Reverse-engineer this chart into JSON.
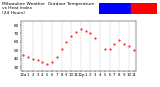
{
  "title": "Milwaukee Weather  Outdoor Temperature\nvs Heat Index\n(24 Hours)",
  "title_fontsize": 3.2,
  "background_color": "#ffffff",
  "plot_bg_color": "#ffffff",
  "grid_color": "#888888",
  "temp_color": "#ff0000",
  "heat_color": "#0000ff",
  "legend_blue_color": "#0000ff",
  "legend_red_color": "#ff0000",
  "ylim": [
    25,
    85
  ],
  "yticks": [
    30,
    40,
    50,
    60,
    70,
    80
  ],
  "ytick_labels": [
    "30",
    "40",
    "50",
    "60",
    "70",
    "80"
  ],
  "ytick_fontsize": 3.0,
  "xtick_fontsize": 2.8,
  "xlabels": [
    "12a",
    "1",
    "2",
    "3",
    "4",
    "5",
    "6",
    "7",
    "8",
    "9",
    "10",
    "11",
    "12p",
    "1",
    "2",
    "3",
    "4",
    "5",
    "6",
    "7",
    "8",
    "9",
    "10",
    "11"
  ],
  "temp_data": [
    [
      0,
      45
    ],
    [
      1,
      42
    ],
    [
      2,
      40
    ],
    [
      3,
      38
    ],
    [
      4,
      36
    ],
    [
      5,
      34
    ],
    [
      6,
      36
    ],
    [
      7,
      42
    ],
    [
      8,
      52
    ],
    [
      9,
      60
    ],
    [
      10,
      67
    ],
    [
      11,
      72
    ],
    [
      12,
      75
    ],
    [
      13,
      73
    ],
    [
      14,
      70
    ],
    [
      15,
      65
    ],
    [
      17,
      52
    ],
    [
      18,
      52
    ],
    [
      19,
      58
    ],
    [
      20,
      62
    ],
    [
      21,
      58
    ],
    [
      22,
      55
    ],
    [
      23,
      50
    ]
  ],
  "heat_data": []
}
